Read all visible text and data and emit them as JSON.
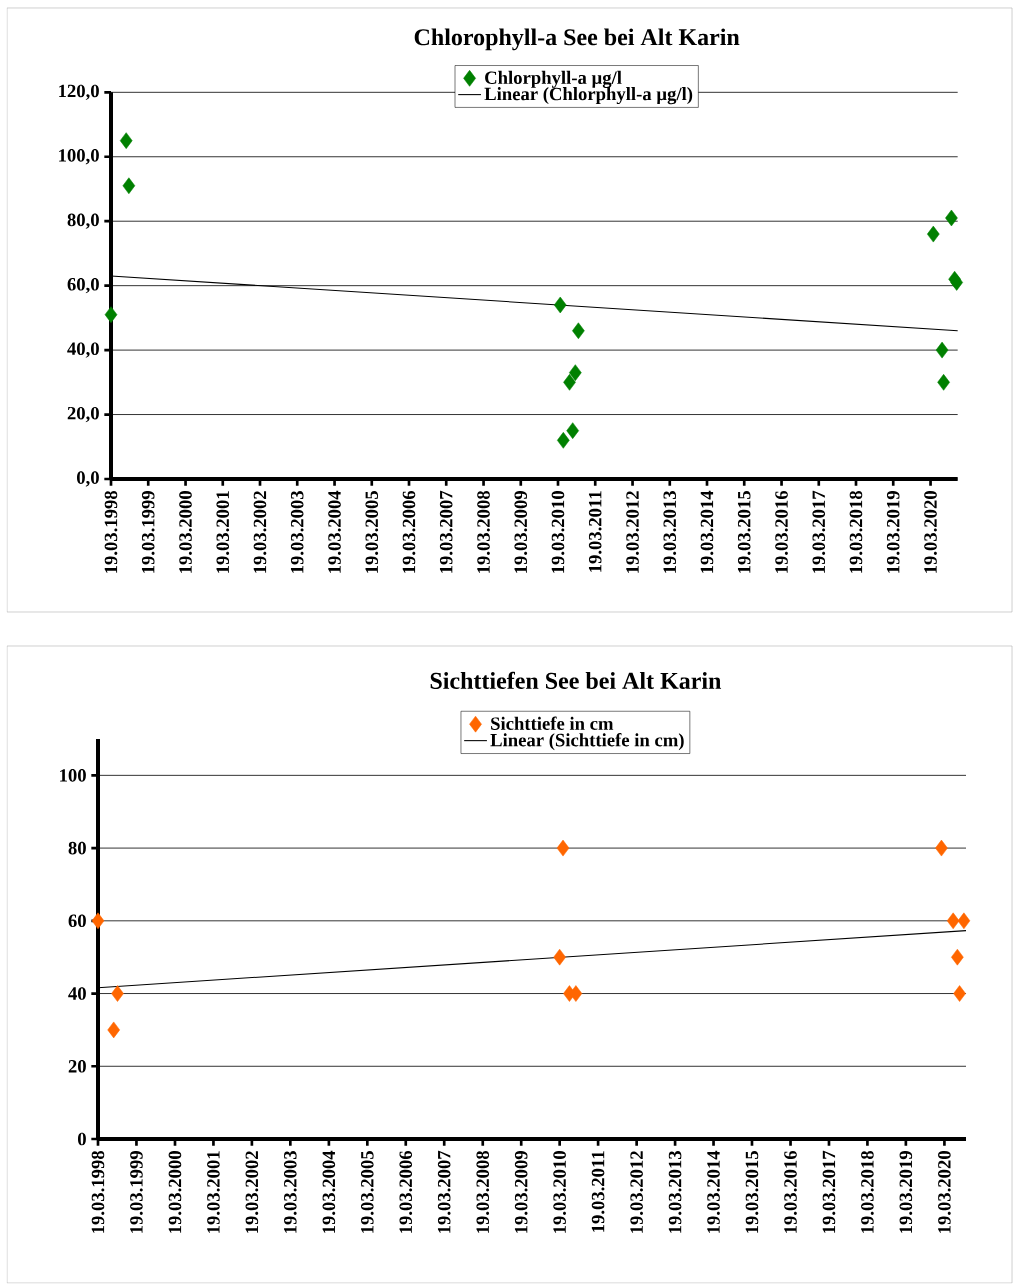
{
  "chart_data": [
    {
      "type": "scatter",
      "title": "Chlorophyll-a   See bei Alt Karin",
      "marker": "diamond",
      "grid": "y",
      "legend": "top",
      "xlim": [
        "1998-03-19",
        "2020-12-10"
      ],
      "xticks": [
        {
          "value": "1998-03-19",
          "label": "19.03.1998"
        },
        {
          "value": "1999-03-19",
          "label": "19.03.1999"
        },
        {
          "value": "2000-03-19",
          "label": "19.03.2000"
        },
        {
          "value": "2001-03-19",
          "label": "19.03.2001"
        },
        {
          "value": "2002-03-19",
          "label": "19.03.2002"
        },
        {
          "value": "2003-03-19",
          "label": "19.03.2003"
        },
        {
          "value": "2004-03-19",
          "label": "19.03.2004"
        },
        {
          "value": "2005-03-19",
          "label": "19.03.2005"
        },
        {
          "value": "2006-03-19",
          "label": "19.03.2006"
        },
        {
          "value": "2007-03-19",
          "label": "19.03.2007"
        },
        {
          "value": "2008-03-19",
          "label": "19.03.2008"
        },
        {
          "value": "2009-03-19",
          "label": "19.03.2009"
        },
        {
          "value": "2010-03-19",
          "label": "19.03.2010"
        },
        {
          "value": "2011-03-19",
          "label": "19.03.2011"
        },
        {
          "value": "2012-03-19",
          "label": "19.03.2012"
        },
        {
          "value": "2013-03-19",
          "label": "19.03.2013"
        },
        {
          "value": "2014-03-19",
          "label": "19.03.2014"
        },
        {
          "value": "2015-03-19",
          "label": "19.03.2015"
        },
        {
          "value": "2016-03-19",
          "label": "19.03.2016"
        },
        {
          "value": "2017-03-19",
          "label": "19.03.2017"
        },
        {
          "value": "2018-03-19",
          "label": "19.03.2018"
        },
        {
          "value": "2019-03-19",
          "label": "19.03.2019"
        },
        {
          "value": "2020-03-19",
          "label": "19.03.2020"
        }
      ],
      "ylim": [
        0,
        120
      ],
      "yticks": [
        {
          "value": 0,
          "label": "0,0"
        },
        {
          "value": 20,
          "label": "20,0"
        },
        {
          "value": 40,
          "label": "40,0"
        },
        {
          "value": 60,
          "label": "60,0"
        },
        {
          "value": 80,
          "label": "80,0"
        },
        {
          "value": 100,
          "label": "100,0"
        },
        {
          "value": 120,
          "label": "120,0"
        }
      ],
      "series": [
        {
          "name": "Chlorphyll-a µg/l",
          "color": "#008000",
          "x": [
            "1998-03-19",
            "1998-08-15",
            "1998-09-10",
            "2010-04-10",
            "2010-05-10",
            "2010-07-10",
            "2010-08-10",
            "2010-09-05",
            "2010-10-05",
            "2020-04-15",
            "2020-07-10",
            "2020-07-25",
            "2020-10-10",
            "2020-11-10",
            "2020-11-30"
          ],
          "values": [
            51,
            105,
            91,
            54,
            12,
            30,
            15,
            33,
            46,
            76,
            40,
            30,
            81,
            62,
            61
          ]
        },
        {
          "name": "Linear (Chlorphyll-a µg/l)",
          "type": "line",
          "line_style": "solid",
          "marker": "none",
          "color": "#000000",
          "x": [
            "1998-03-19",
            "2020-12-10"
          ],
          "values": [
            63,
            46
          ]
        }
      ]
    },
    {
      "type": "scatter",
      "title": "Sichttiefen See bei Alt Karin",
      "marker": "diamond",
      "grid": "y",
      "legend": "top",
      "xlim": [
        "1998-03-19",
        "2020-10-10"
      ],
      "xticks": [
        {
          "value": "1998-03-19",
          "label": "19.03.1998"
        },
        {
          "value": "1999-03-19",
          "label": "19.03.1999"
        },
        {
          "value": "2000-03-19",
          "label": "19.03.2000"
        },
        {
          "value": "2001-03-19",
          "label": "19.03.2001"
        },
        {
          "value": "2002-03-19",
          "label": "19.03.2002"
        },
        {
          "value": "2003-03-19",
          "label": "19.03.2003"
        },
        {
          "value": "2004-03-19",
          "label": "19.03.2004"
        },
        {
          "value": "2005-03-19",
          "label": "19.03.2005"
        },
        {
          "value": "2006-03-19",
          "label": "19.03.2006"
        },
        {
          "value": "2007-03-19",
          "label": "19.03.2007"
        },
        {
          "value": "2008-03-19",
          "label": "19.03.2008"
        },
        {
          "value": "2009-03-19",
          "label": "19.03.2009"
        },
        {
          "value": "2010-03-19",
          "label": "19.03.2010"
        },
        {
          "value": "2011-03-19",
          "label": "19.03.2011"
        },
        {
          "value": "2012-03-19",
          "label": "19.03.2012"
        },
        {
          "value": "2013-03-19",
          "label": "19.03.2013"
        },
        {
          "value": "2014-03-19",
          "label": "19.03.2014"
        },
        {
          "value": "2015-03-19",
          "label": "19.03.2015"
        },
        {
          "value": "2016-03-19",
          "label": "19.03.2016"
        },
        {
          "value": "2017-03-19",
          "label": "19.03.2017"
        },
        {
          "value": "2018-03-19",
          "label": "19.03.2018"
        },
        {
          "value": "2019-03-19",
          "label": "19.03.2019"
        },
        {
          "value": "2020-03-19",
          "label": "19.03.2020"
        }
      ],
      "ylim": [
        0,
        110
      ],
      "yticks": [
        0,
        20,
        40,
        60,
        80,
        100
      ],
      "series": [
        {
          "name": "Sichttiefe in cm",
          "color": "#ff6600",
          "x": [
            "1998-03-19",
            "1998-08-15",
            "1998-09-20",
            "2010-03-19",
            "2010-04-20",
            "2010-06-20",
            "2010-08-20",
            "2020-02-20",
            "2020-06-10",
            "2020-07-20",
            "2020-08-10",
            "2020-09-20"
          ],
          "values": [
            60,
            30,
            40,
            50,
            80,
            40,
            40,
            80,
            60,
            50,
            40,
            60
          ]
        },
        {
          "name": "Linear (Sichttiefe in cm)",
          "type": "line",
          "line_style": "solid",
          "marker": "none",
          "color": "#000000",
          "x": [
            "1998-03-19",
            "2020-10-10"
          ],
          "values": [
            41.6,
            57.3
          ]
        }
      ]
    }
  ]
}
